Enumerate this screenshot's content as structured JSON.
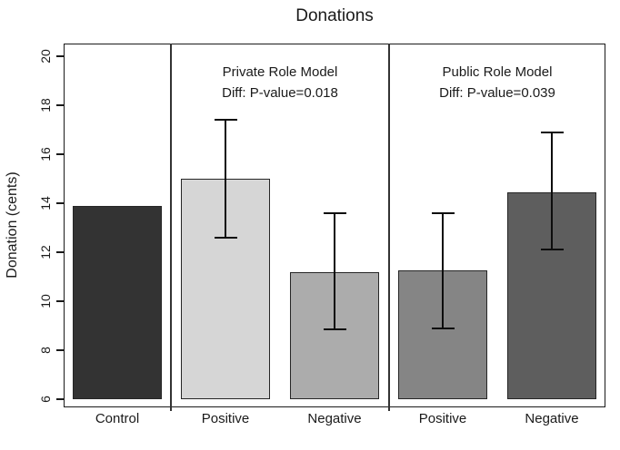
{
  "chart_data": {
    "type": "bar",
    "title": "Donations",
    "xlabel": "",
    "ylabel": "Donation (cents)",
    "ylim": [
      6,
      20
    ],
    "yticks": [
      6,
      8,
      10,
      12,
      14,
      16,
      18,
      20
    ],
    "grid": false,
    "legend": null,
    "error_bars": "95% CI whiskers on treatment bars",
    "panels": [
      {
        "annotation_line1": "",
        "annotation_line2": "",
        "bars": [
          {
            "label": "Control",
            "value": 13.9,
            "ci": null,
            "color": "#333333"
          }
        ]
      },
      {
        "annotation_line1": "Private Role Model",
        "annotation_line2": "Diff: P-value=0.018",
        "bars": [
          {
            "label": "Positive",
            "value": 15.0,
            "ci": [
              12.6,
              17.4
            ],
            "color": "#d6d6d6"
          },
          {
            "label": "Negative",
            "value": 11.2,
            "ci": [
              8.85,
              13.6
            ],
            "color": "#acacac"
          }
        ]
      },
      {
        "annotation_line1": "Public Role Model",
        "annotation_line2": "Diff: P-value=0.039",
        "bars": [
          {
            "label": "Positive",
            "value": 11.25,
            "ci": [
              8.9,
              13.6
            ],
            "color": "#858585"
          },
          {
            "label": "Negative",
            "value": 14.45,
            "ci": [
              12.1,
              16.9
            ],
            "color": "#5e5e5e"
          }
        ]
      }
    ]
  }
}
